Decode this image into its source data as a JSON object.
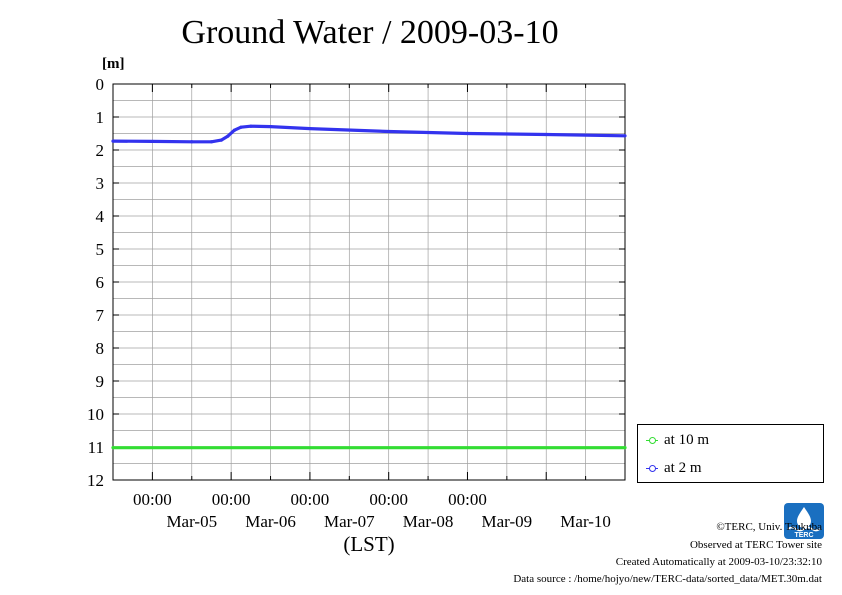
{
  "chart_data": {
    "type": "line",
    "title": "Ground Water / 2009-03-10",
    "ylabel": "[m]",
    "xlabel": "(LST)",
    "ylim": [
      0,
      12
    ],
    "y_inverted": true,
    "yticks": [
      "0",
      "1",
      "2",
      "3",
      "4",
      "5",
      "6",
      "7",
      "8",
      "9",
      "10",
      "11",
      "12"
    ],
    "xlim": [
      "2009-03-04T12:00",
      "2009-03-10T24:00"
    ],
    "xtick_times": [
      "00:00",
      "00:00",
      "00:00",
      "00:00",
      "00:00"
    ],
    "xtick_dates": [
      "Mar-05",
      "Mar-06",
      "Mar-07",
      "Mar-08",
      "Mar-09",
      "Mar-10"
    ],
    "grid": true,
    "legend_position": "bottom-right, outside plot",
    "series": [
      {
        "name": "at 10 m",
        "color": "#33dd33",
        "points": [
          [
            "2009-03-04T12:00",
            11.02
          ],
          [
            "2009-03-10T24:00",
            11.02
          ]
        ]
      },
      {
        "name": "at 2 m",
        "color": "#3333ee",
        "points": [
          [
            "2009-03-04T12:00",
            1.73
          ],
          [
            "2009-03-05T00:00",
            1.74
          ],
          [
            "2009-03-05T12:00",
            1.75
          ],
          [
            "2009-03-05T18:00",
            1.75
          ],
          [
            "2009-03-05T21:00",
            1.7
          ],
          [
            "2009-03-05T23:00",
            1.58
          ],
          [
            "2009-03-06T01:00",
            1.4
          ],
          [
            "2009-03-06T03:00",
            1.31
          ],
          [
            "2009-03-06T06:00",
            1.28
          ],
          [
            "2009-03-06T12:00",
            1.29
          ],
          [
            "2009-03-07T00:00",
            1.35
          ],
          [
            "2009-03-08T00:00",
            1.44
          ],
          [
            "2009-03-09T00:00",
            1.5
          ],
          [
            "2009-03-10T00:00",
            1.53
          ],
          [
            "2009-03-10T24:00",
            1.57
          ]
        ]
      }
    ]
  },
  "credits": {
    "copyright": "©TERC, Univ. Tsukuba",
    "observed": "Observed at TERC Tower site",
    "created": "Created Automatically at 2009-03-10/23:32:10",
    "source": "Data source : /home/hojyo/new/TERC-data/sorted_data/MET.30m.dat"
  },
  "logo": {
    "text": "TERC",
    "color": "#1a6fc0"
  }
}
